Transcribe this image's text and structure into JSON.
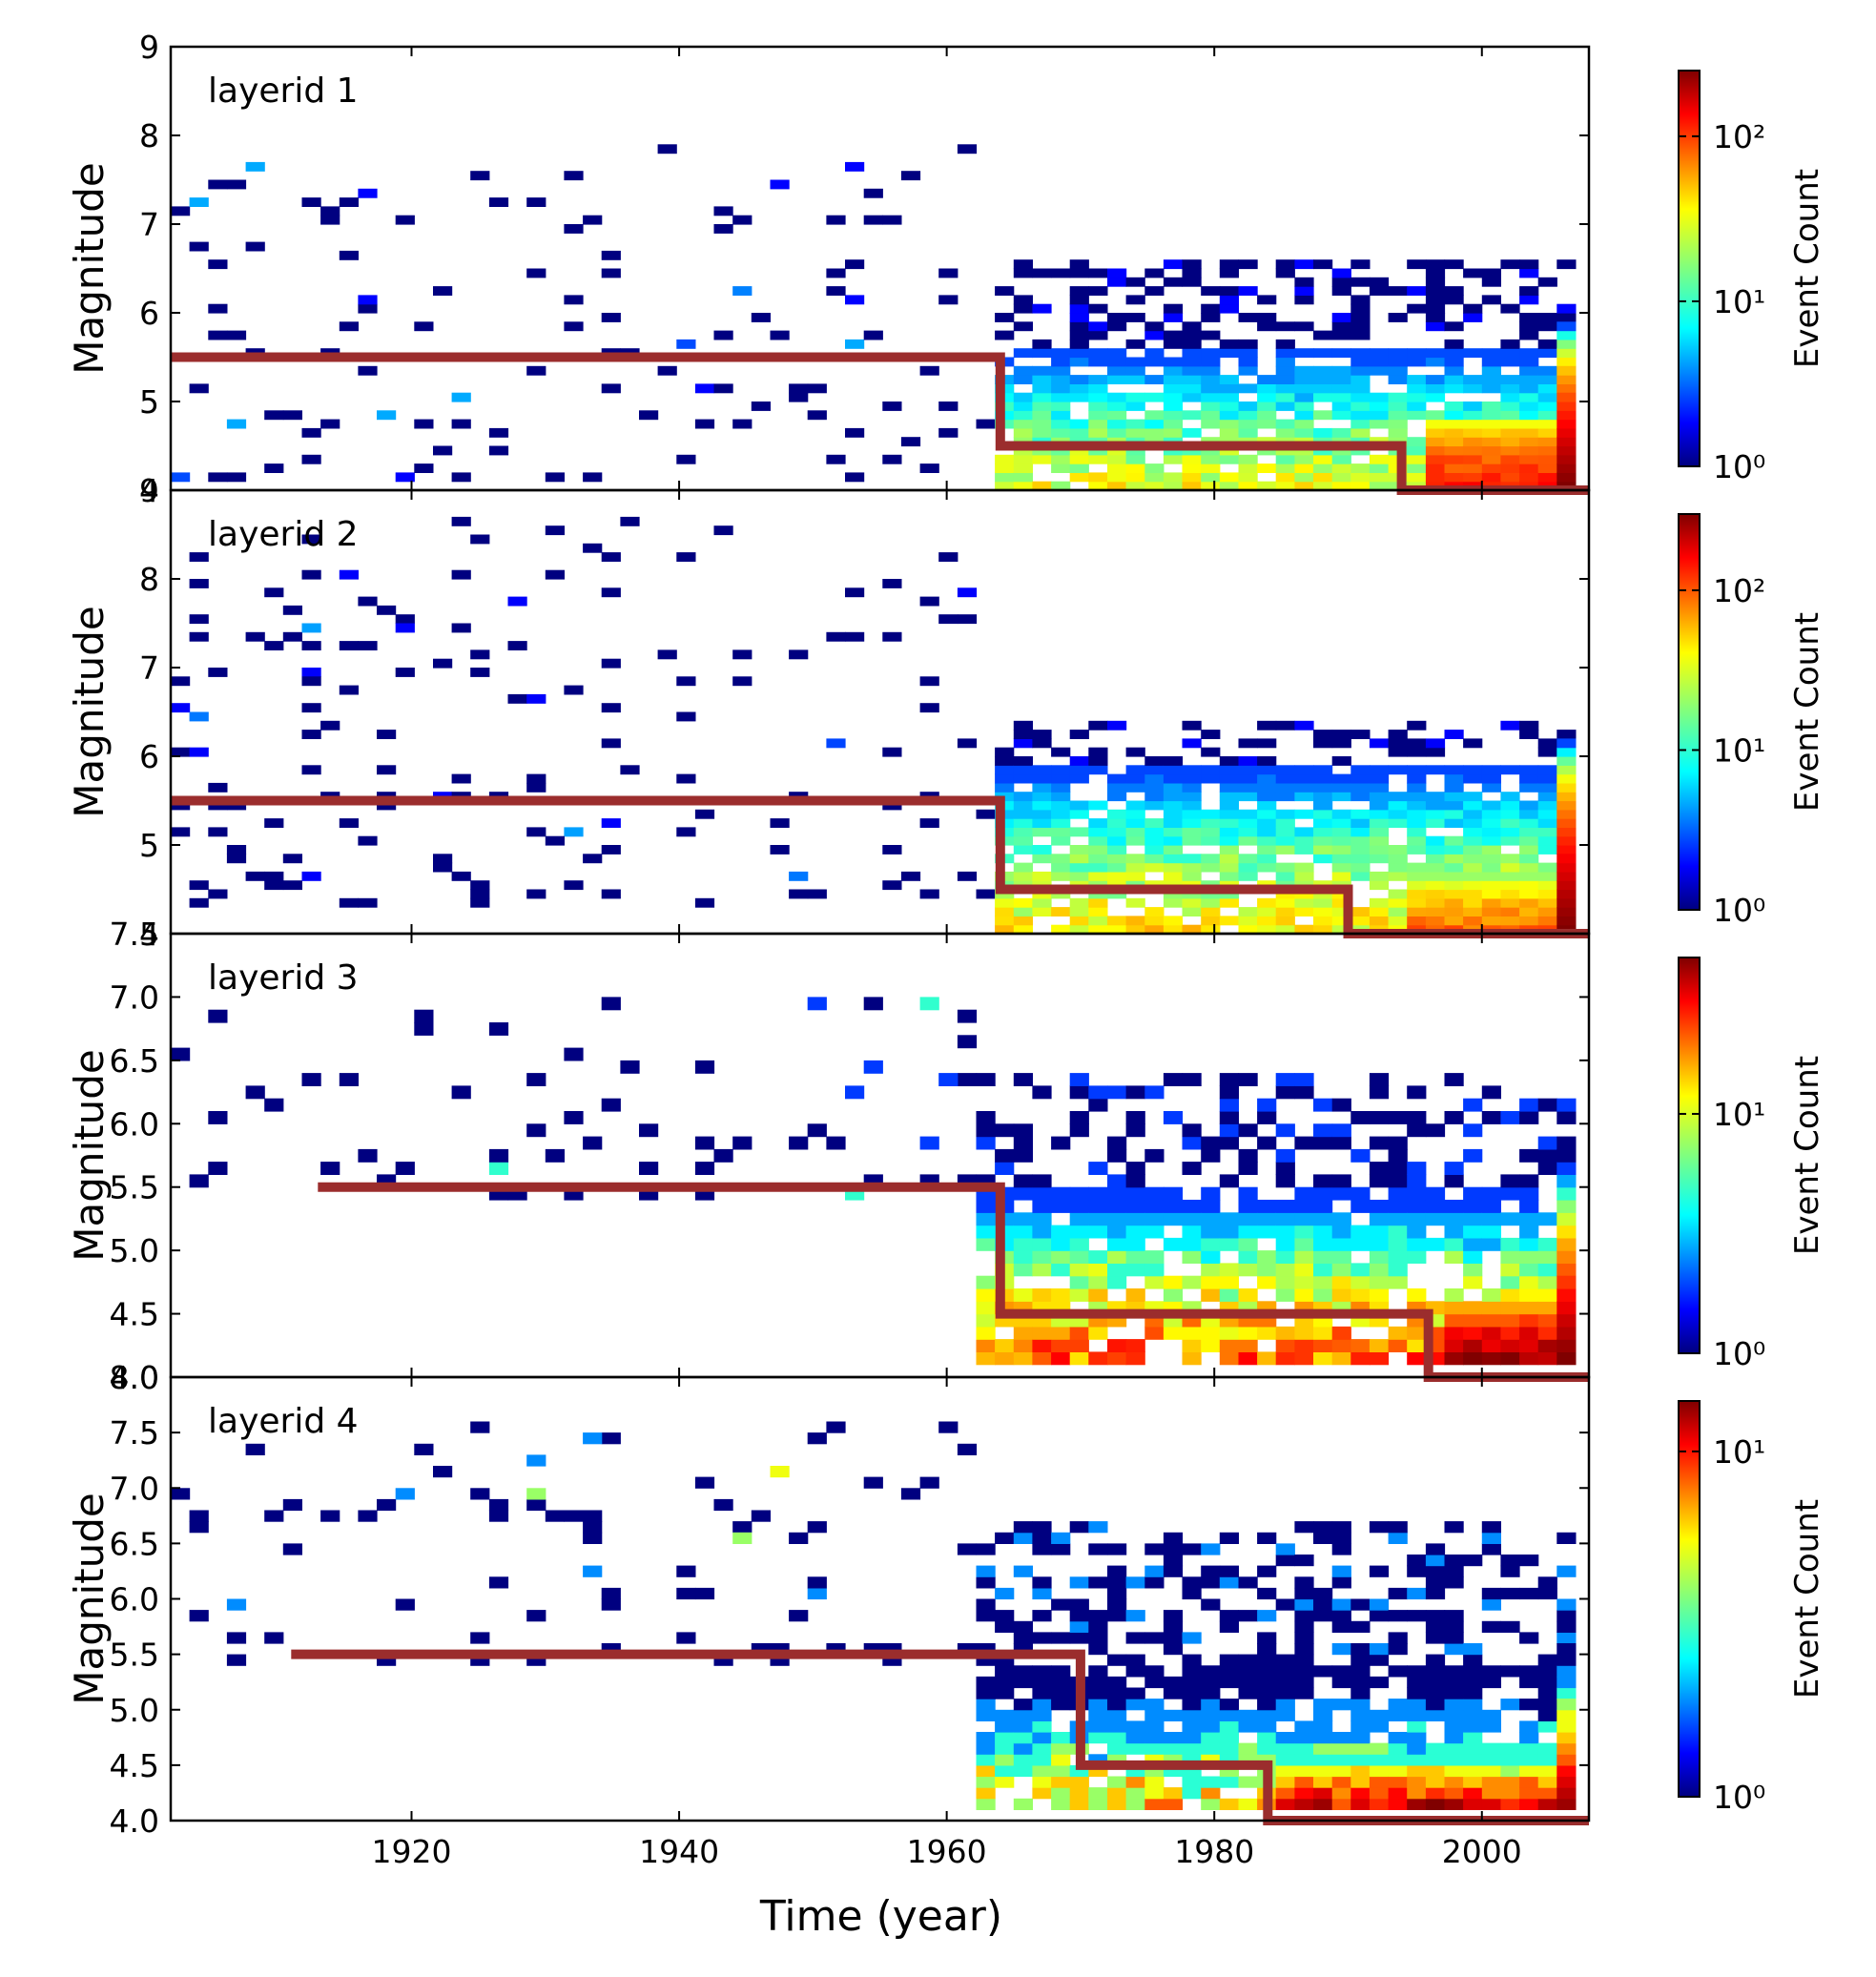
{
  "figure": {
    "xlabel": "Time (year)",
    "colorbar_label": "Event Count",
    "x_ticks": [
      1920,
      1940,
      1960,
      1980,
      2000
    ],
    "xlim": [
      1902,
      2008
    ]
  },
  "chart_data": [
    {
      "type": "heatmap",
      "annotation": "layerid 1",
      "ylabel": "Magnitude",
      "xlim": [
        1902,
        2008
      ],
      "ylim": [
        4,
        9
      ],
      "y_ticks": [
        4,
        5,
        6,
        7,
        8,
        9
      ],
      "y_tick_labels": [
        "4",
        "5",
        "6",
        "7",
        "8",
        "9"
      ],
      "colorbar": {
        "scale": "log",
        "max_count": 250,
        "ticks": [
          1,
          10,
          100
        ],
        "tick_labels": [
          "10⁰",
          "10¹",
          "10²"
        ]
      },
      "completeness_line": {
        "color": "#9b2d2d",
        "points": [
          [
            1902,
            5.5
          ],
          [
            1964,
            5.5
          ],
          [
            1964,
            4.5
          ],
          [
            1994,
            4.5
          ],
          [
            1994,
            4.0
          ],
          [
            2008,
            4.0
          ]
        ]
      },
      "density": {
        "sparse_years": [
          1902,
          1963
        ],
        "sparse_mag": [
          4.1,
          7.9
        ],
        "sparse_n": 120,
        "dense_years": [
          1963,
          2007
        ],
        "dense_mag": [
          4.0,
          6.5
        ],
        "core_mag_top": 5.5,
        "core_min_count": 3,
        "core_max_count": 30,
        "hot_years": [
          1995,
          2007
        ],
        "hot_mag_top": 4.7,
        "hot_min_count": 30,
        "hot_max_count": 120,
        "spike_year": 2005,
        "spike_count": 250
      }
    },
    {
      "type": "heatmap",
      "annotation": "layerid 2",
      "ylabel": "Magnitude",
      "xlim": [
        1902,
        2008
      ],
      "ylim": [
        4,
        9
      ],
      "y_ticks": [
        4,
        5,
        6,
        7,
        8,
        9
      ],
      "y_tick_labels": [
        "4",
        "5",
        "6",
        "7",
        "8",
        "9"
      ],
      "colorbar": {
        "scale": "log",
        "max_count": 300,
        "ticks": [
          1,
          10,
          100
        ],
        "tick_labels": [
          "10⁰",
          "10¹",
          "10²"
        ]
      },
      "completeness_line": {
        "color": "#9b2d2d",
        "points": [
          [
            1902,
            5.5
          ],
          [
            1964,
            5.5
          ],
          [
            1964,
            4.5
          ],
          [
            1990,
            4.5
          ],
          [
            1990,
            4.0
          ],
          [
            2008,
            4.0
          ]
        ]
      },
      "density": {
        "sparse_years": [
          1902,
          1963
        ],
        "sparse_mag": [
          4.3,
          8.7
        ],
        "sparse_n": 150,
        "dense_years": [
          1963,
          2007
        ],
        "dense_mag": [
          4.0,
          6.3
        ],
        "core_mag_top": 5.8,
        "core_min_count": 3,
        "core_max_count": 40,
        "hot_years": [
          1993,
          2007
        ],
        "hot_mag_top": 4.6,
        "hot_min_count": 20,
        "hot_max_count": 90,
        "spike_year": 2005,
        "spike_count": 300
      }
    },
    {
      "type": "heatmap",
      "annotation": "layerid 3",
      "ylabel": "Magnitude",
      "xlim": [
        1902,
        2008
      ],
      "ylim": [
        4,
        7.5
      ],
      "y_ticks": [
        4.0,
        4.5,
        5.0,
        5.5,
        6.0,
        6.5,
        7.0,
        7.5
      ],
      "y_tick_labels": [
        "4.0",
        "4.5",
        "5.0",
        "5.5",
        "6.0",
        "6.5",
        "7.0",
        "7.5"
      ],
      "colorbar": {
        "scale": "log",
        "max_count": 45,
        "ticks": [
          1,
          10
        ],
        "tick_labels": [
          "10⁰",
          "10¹"
        ]
      },
      "completeness_line": {
        "color": "#9b2d2d",
        "points": [
          [
            1913,
            5.5
          ],
          [
            1964,
            5.5
          ],
          [
            1964,
            4.5
          ],
          [
            1996,
            4.5
          ],
          [
            1996,
            4.0
          ],
          [
            2008,
            4.0
          ]
        ]
      },
      "density": {
        "sparse_years": [
          1902,
          1963
        ],
        "sparse_mag": [
          5.4,
          7.0
        ],
        "sparse_n": 60,
        "dense_years": [
          1962,
          2007
        ],
        "dense_mag": [
          4.1,
          6.3
        ],
        "core_mag_top": 5.4,
        "core_min_count": 2,
        "core_max_count": 20,
        "hot_years": [
          1996,
          2007
        ],
        "hot_mag_top": 4.5,
        "hot_min_count": 15,
        "hot_max_count": 45,
        "spike_year": 2005,
        "spike_count": 45
      }
    },
    {
      "type": "heatmap",
      "annotation": "layerid 4",
      "ylabel": "Magnitude",
      "xlim": [
        1902,
        2008
      ],
      "ylim": [
        4,
        8
      ],
      "y_ticks": [
        4.0,
        4.5,
        5.0,
        5.5,
        6.0,
        6.5,
        7.0,
        7.5,
        8.0
      ],
      "y_tick_labels": [
        "4.0",
        "4.5",
        "5.0",
        "5.5",
        "6.0",
        "6.5",
        "7.0",
        "7.5",
        "8.0"
      ],
      "colorbar": {
        "scale": "log",
        "max_count": 14,
        "ticks": [
          1,
          10
        ],
        "tick_labels": [
          "10⁰",
          "10¹"
        ]
      },
      "completeness_line": {
        "color": "#9b2d2d",
        "points": [
          [
            1911,
            5.5
          ],
          [
            1970,
            5.5
          ],
          [
            1970,
            4.5
          ],
          [
            1984,
            4.5
          ],
          [
            1984,
            4.0
          ],
          [
            2008,
            4.0
          ]
        ]
      },
      "density": {
        "sparse_years": [
          1902,
          1963
        ],
        "sparse_mag": [
          5.4,
          7.6
        ],
        "sparse_n": 80,
        "dense_years": [
          1962,
          2007
        ],
        "dense_mag": [
          4.1,
          6.6
        ],
        "core_mag_top": 5.3,
        "core_min_count": 1,
        "core_max_count": 6,
        "hot_years": [
          1984,
          2007
        ],
        "hot_mag_top": 4.5,
        "hot_min_count": 3,
        "hot_max_count": 12,
        "spike_year": 2005,
        "spike_count": 13
      }
    }
  ]
}
